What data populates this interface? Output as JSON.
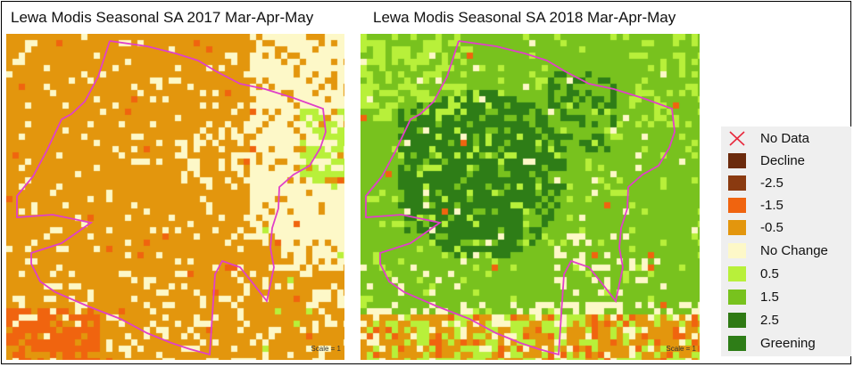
{
  "maps": [
    {
      "title": "Lewa Modis Seasonal SA 2017 Mar-Apr-May",
      "scale_label": "Scale = 1",
      "dominant_class": "-0.5"
    },
    {
      "title": "Lewa Modis Seasonal SA 2018 Mar-Apr-May",
      "scale_label": "Scale = 1",
      "dominant_class": "1.5"
    }
  ],
  "legend": {
    "items": [
      {
        "label": "No Data",
        "color": "#e8283c",
        "icon": "x-mark-icon"
      },
      {
        "label": "Decline",
        "color": "#6b2a0c"
      },
      {
        "label": "-2.5",
        "color": "#8a3a10"
      },
      {
        "label": "-1.5",
        "color": "#f0640f"
      },
      {
        "label": "-0.5",
        "color": "#e3960d"
      },
      {
        "label": "No Change",
        "color": "#fdf8c8"
      },
      {
        "label": "0.5",
        "color": "#b8f03a"
      },
      {
        "label": "1.5",
        "color": "#78c21e"
      },
      {
        "label": "2.5",
        "color": "#2f7a14"
      },
      {
        "label": "Greening",
        "color": "#2e7d17"
      }
    ]
  },
  "boundary_color": "#e040c8"
}
